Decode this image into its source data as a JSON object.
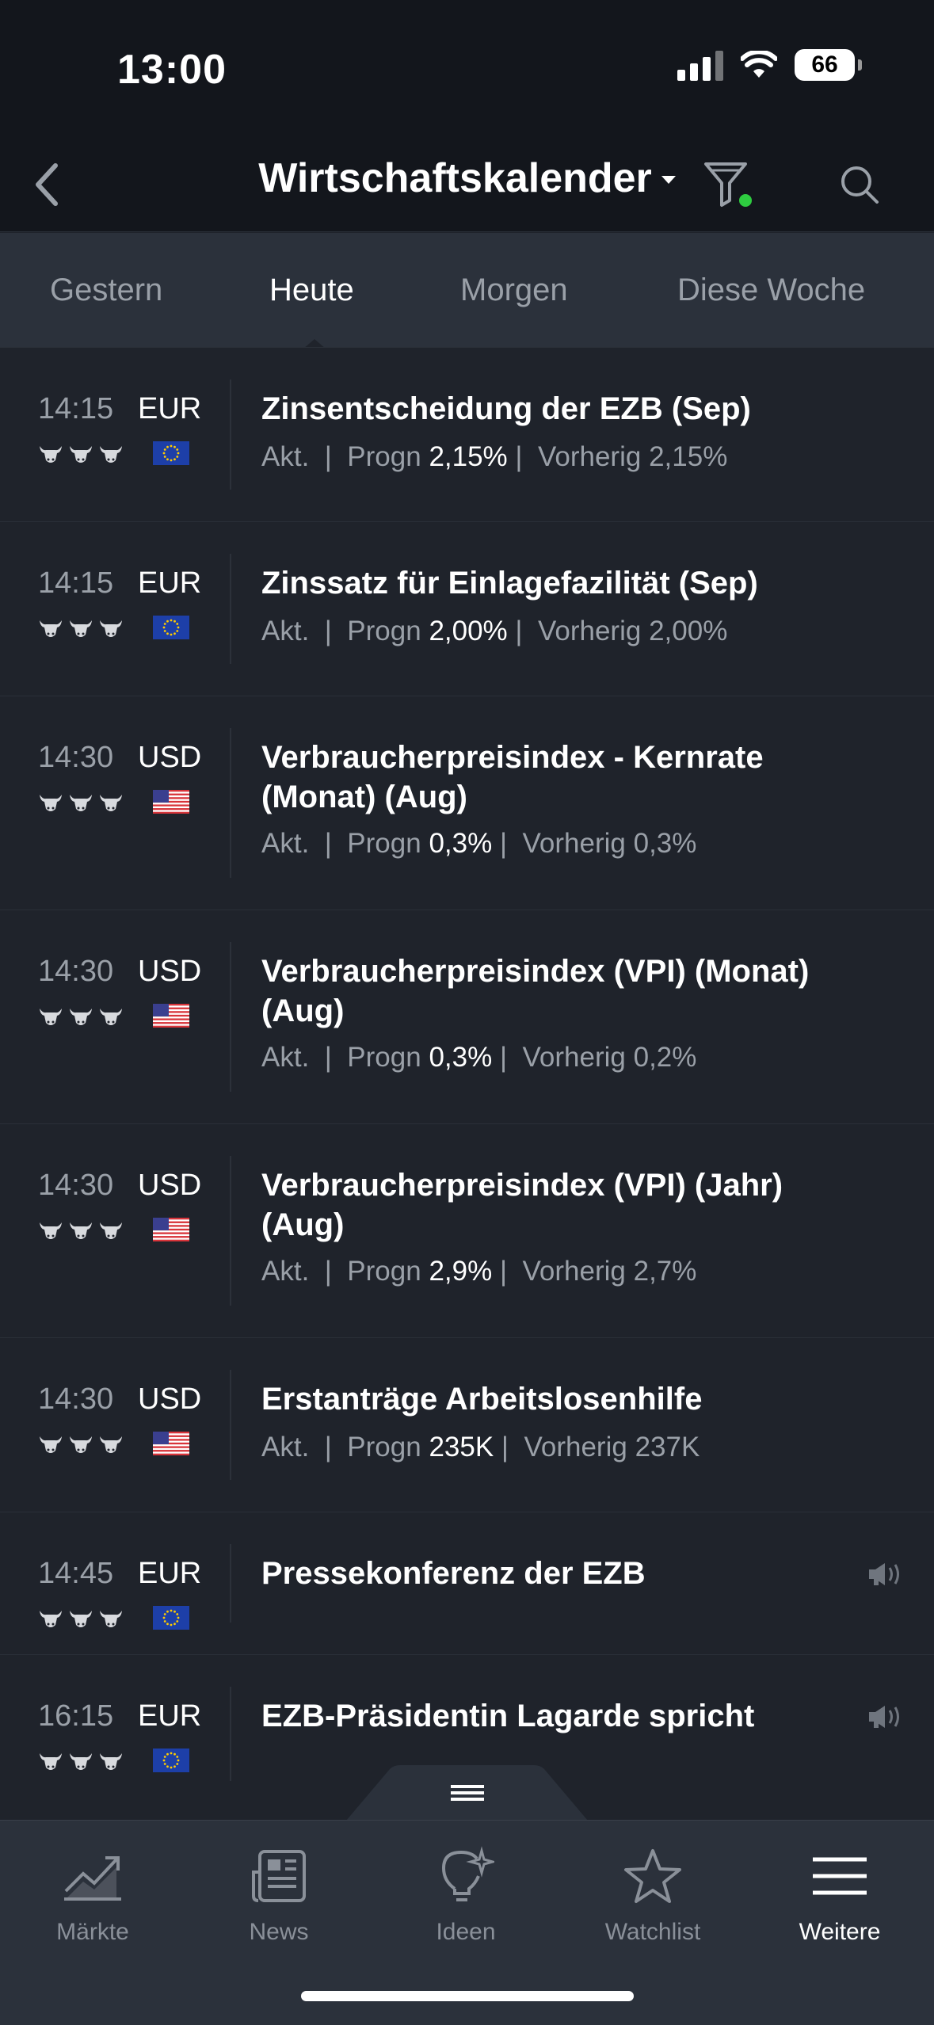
{
  "status": {
    "time": "13:00",
    "battery": "66"
  },
  "header": {
    "title": "Wirtschaftskalender"
  },
  "tabs": [
    {
      "label": "Gestern",
      "active": false
    },
    {
      "label": "Heute",
      "active": true
    },
    {
      "label": "Morgen",
      "active": false
    },
    {
      "label": "Diese Woche",
      "active": false
    }
  ],
  "labels": {
    "actual": "Akt.",
    "forecast": "Progn",
    "previous": "Vorherig",
    "sep": "|"
  },
  "events": [
    {
      "time": "14:15",
      "currency": "EUR",
      "flag": "eu-flag",
      "name": "Zinsentscheidung der EZB (Sep)",
      "forecast": "2,15%",
      "previous": "2,15%"
    },
    {
      "time": "14:15",
      "currency": "EUR",
      "flag": "eu-flag",
      "name": "Zinssatz für Einlagefazilität (Sep)",
      "forecast": "2,00%",
      "previous": "2,00%"
    },
    {
      "time": "14:30",
      "currency": "USD",
      "flag": "us-flag",
      "name": "Verbraucherpreisindex - Kernrate (Monat) (Aug)",
      "forecast": "0,3%",
      "previous": "0,3%"
    },
    {
      "time": "14:30",
      "currency": "USD",
      "flag": "us-flag",
      "name": "Verbraucherpreisindex (VPI) (Monat) (Aug)",
      "forecast": "0,3%",
      "previous": "0,2%"
    },
    {
      "time": "14:30",
      "currency": "USD",
      "flag": "us-flag",
      "name": "Verbraucherpreisindex (VPI) (Jahr) (Aug)",
      "forecast": "2,9%",
      "previous": "2,7%"
    },
    {
      "time": "14:30",
      "currency": "USD",
      "flag": "us-flag",
      "name": "Erstanträge Arbeitslosenhilfe",
      "forecast": "235K",
      "previous": "237K"
    },
    {
      "time": "14:45",
      "currency": "EUR",
      "flag": "eu-flag",
      "name": "Pressekonferenz der EZB",
      "speech": true
    },
    {
      "time": "16:15",
      "currency": "EUR",
      "flag": "eu-flag",
      "name": "EZB-Präsidentin Lagarde spricht",
      "speech": true
    }
  ],
  "tabbar": [
    {
      "label": "Märkte",
      "icon": "chart-icon"
    },
    {
      "label": "News",
      "icon": "news-icon"
    },
    {
      "label": "Ideen",
      "icon": "lightbulb-icon"
    },
    {
      "label": "Watchlist",
      "icon": "star-icon"
    },
    {
      "label": "Weitere",
      "icon": "menu-icon",
      "active": true
    }
  ],
  "colors": {
    "background": "#1f232b",
    "header": "#13161c",
    "tabs": "#2b313b",
    "filter_dot": "#2ecc40"
  }
}
